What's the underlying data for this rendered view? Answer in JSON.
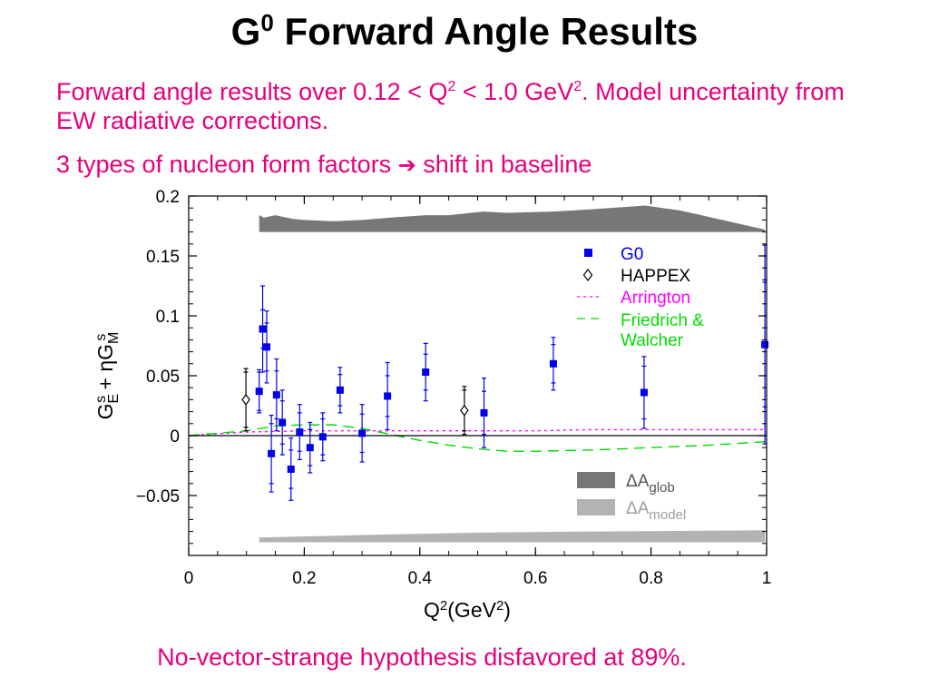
{
  "slide": {
    "title_main": "G",
    "title_sup": "0",
    "title_rest": " Forward Angle Results",
    "line1_a": "Forward angle results over 0.12 < Q",
    "line1_sup1": "2",
    "line1_b": " < 1.0 GeV",
    "line1_sup2": "2",
    "line1_c": ".  Model uncertainty from EW radiative corrections.",
    "line2_a": "3 types of nucleon form factors ",
    "line2_arrow": "➔",
    "line2_b": " shift in baseline",
    "conclusion": "No-vector-strange hypothesis disfavored at 89%.",
    "text_color": "#e6007e"
  },
  "chart_data": {
    "type": "scatter",
    "xlim": [
      0,
      1
    ],
    "ylim": [
      -0.1,
      0.2
    ],
    "x_ticks": [
      0,
      0.2,
      0.4,
      0.6,
      0.8,
      1
    ],
    "x_tick_labels": [
      "0",
      "0.2",
      "0.4",
      "0.6",
      "0.8",
      "1"
    ],
    "y_ticks": [
      -0.05,
      0,
      0.05,
      0.1,
      0.15,
      0.2
    ],
    "y_tick_labels": [
      "−0.05",
      "0",
      "0.05",
      "0.1",
      "0.15",
      "0.2"
    ],
    "xlabel_parts": [
      "Q",
      "2",
      "(GeV",
      "2",
      ")"
    ],
    "ylabel_parts": [
      "G",
      "E",
      "s",
      " + ηG",
      "M",
      "s"
    ],
    "series": [
      {
        "name": "G0",
        "color": "#0000ee",
        "marker": "square",
        "x": [
          0.122,
          0.128,
          0.135,
          0.143,
          0.152,
          0.162,
          0.177,
          0.192,
          0.21,
          0.232,
          0.262,
          0.3,
          0.344,
          0.41,
          0.511,
          0.631,
          0.788,
          0.997
        ],
        "y": [
          0.037,
          0.089,
          0.074,
          -0.015,
          0.034,
          0.011,
          -0.028,
          0.003,
          -0.01,
          -0.001,
          0.038,
          0.002,
          0.033,
          0.053,
          0.019,
          0.06,
          0.036,
          0.076
        ],
        "stat_err": [
          0.016,
          0.016,
          0.02,
          0.025,
          0.02,
          0.018,
          0.016,
          0.016,
          0.015,
          0.015,
          0.013,
          0.016,
          0.017,
          0.015,
          0.018,
          0.016,
          0.022,
          0.052
        ],
        "tot_err": [
          0.018,
          0.036,
          0.03,
          0.032,
          0.03,
          0.027,
          0.026,
          0.023,
          0.021,
          0.02,
          0.019,
          0.024,
          0.028,
          0.024,
          0.029,
          0.022,
          0.03,
          0.083
        ]
      },
      {
        "name": "HAPPEX",
        "color": "#000000",
        "marker": "diamond",
        "x": [
          0.099,
          0.477
        ],
        "y": [
          0.03,
          0.021
        ],
        "stat_err": [
          0.023,
          0.017
        ],
        "tot_err": [
          0.026,
          0.02
        ]
      }
    ],
    "curves": [
      {
        "name": "Arrington",
        "color": "#ff00ff",
        "dash": "dotted",
        "x": [
          0,
          0.1,
          0.2,
          0.3,
          0.4,
          0.5,
          0.6,
          0.7,
          0.8,
          0.9,
          1.0
        ],
        "y": [
          0,
          0.003,
          0.004,
          0.004,
          0.004,
          0.004,
          0.004,
          0.005,
          0.005,
          0.005,
          0.005
        ]
      },
      {
        "name": "Friedrich &\nWalcher",
        "color": "#00dd00",
        "dash": "dashed",
        "x": [
          0,
          0.1,
          0.15,
          0.2,
          0.25,
          0.3,
          0.35,
          0.4,
          0.45,
          0.5,
          0.55,
          0.6,
          0.7,
          0.8,
          0.9,
          1.0
        ],
        "y": [
          0,
          0.004,
          0.008,
          0.009,
          0.009,
          0.006,
          0.001,
          -0.004,
          -0.008,
          -0.011,
          -0.013,
          -0.013,
          -0.012,
          -0.01,
          -0.008,
          -0.005
        ]
      }
    ],
    "bands": [
      {
        "name": "ΔA_glob",
        "label_main": "ΔA",
        "label_sub": "glob",
        "color": "#777777",
        "base": 0.17,
        "x": [
          0.122,
          0.13,
          0.14,
          0.15,
          0.16,
          0.18,
          0.2,
          0.25,
          0.3,
          0.35,
          0.41,
          0.45,
          0.51,
          0.55,
          0.63,
          0.7,
          0.79,
          0.85,
          0.997
        ],
        "top": [
          0.184,
          0.182,
          0.183,
          0.184,
          0.183,
          0.181,
          0.18,
          0.179,
          0.18,
          0.182,
          0.184,
          0.184,
          0.187,
          0.186,
          0.187,
          0.189,
          0.192,
          0.188,
          0.172
        ]
      },
      {
        "name": "ΔA_model",
        "label_main": "ΔA",
        "label_sub": "model",
        "color": "#b3b3b3",
        "base": -0.089,
        "x": [
          0.122,
          0.3,
          0.5,
          0.7,
          0.997
        ],
        "top": [
          -0.085,
          -0.083,
          -0.081,
          -0.08,
          -0.079
        ]
      }
    ],
    "legend_position": "top-right",
    "grid": false
  }
}
